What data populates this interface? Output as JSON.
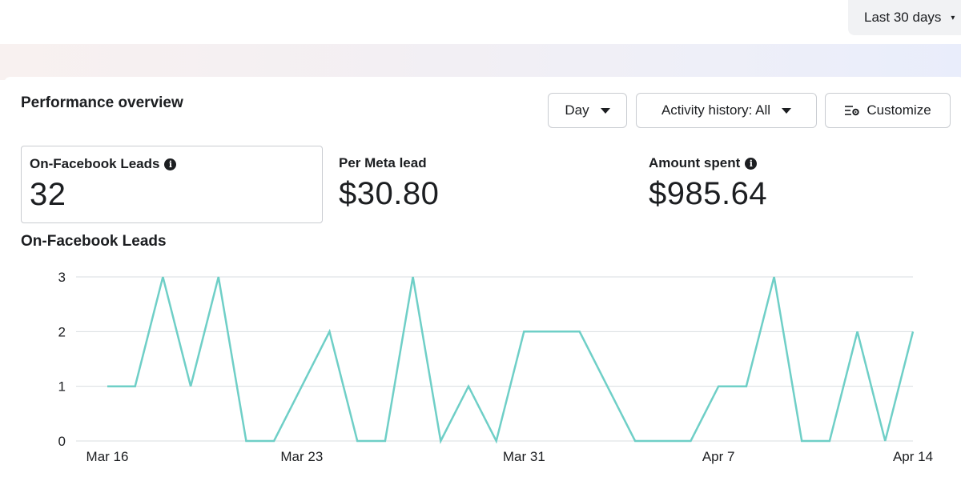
{
  "header": {
    "date_range_label": "Last 30 days"
  },
  "card": {
    "title": "Performance overview",
    "controls": {
      "granularity_label": "Day",
      "activity_label": "Activity history: All",
      "customize_label": "Customize"
    },
    "metrics": [
      {
        "label": "On-Facebook Leads",
        "value": "32",
        "info": true,
        "selected": true
      },
      {
        "label": "Per Meta lead",
        "value": "$30.80",
        "info": false,
        "selected": false
      },
      {
        "label": "Amount spent",
        "value": "$985.64",
        "info": true,
        "selected": false
      }
    ]
  },
  "colors": {
    "line": "#6fcfc7",
    "grid": "#dadde1",
    "text": "#1c1e21"
  },
  "chart_data": {
    "type": "line",
    "title": "On-Facebook Leads",
    "xlabel": "",
    "ylabel": "",
    "ylim": [
      0,
      3
    ],
    "yticks": [
      0,
      1,
      2,
      3
    ],
    "x_tick_labels": [
      "Mar 16",
      "Mar 23",
      "Mar 31",
      "Apr 7",
      "Apr 14"
    ],
    "x_tick_indices": [
      0,
      7,
      15,
      22,
      29
    ],
    "x": [
      "Mar 16",
      "Mar 17",
      "Mar 18",
      "Mar 19",
      "Mar 20",
      "Mar 21",
      "Mar 22",
      "Mar 23",
      "Mar 24",
      "Mar 25",
      "Mar 26",
      "Mar 27",
      "Mar 28",
      "Mar 29",
      "Mar 30",
      "Mar 31",
      "Apr 1",
      "Apr 2",
      "Apr 3",
      "Apr 4",
      "Apr 5",
      "Apr 6",
      "Apr 7",
      "Apr 8",
      "Apr 9",
      "Apr 10",
      "Apr 11",
      "Apr 12",
      "Apr 13",
      "Apr 14"
    ],
    "series": [
      {
        "values": [
          1,
          1,
          3,
          1,
          3,
          0,
          0,
          1,
          2,
          0,
          0,
          3,
          0,
          1,
          0,
          2,
          2,
          2,
          1,
          0,
          0,
          0,
          1,
          1,
          3,
          0,
          0,
          2,
          0,
          2
        ]
      }
    ],
    "grid": true,
    "legend": "none"
  }
}
